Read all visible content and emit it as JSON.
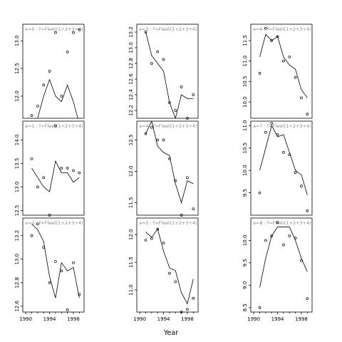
{
  "chart_data": {
    "type": "scatter",
    "xlabel": "Year",
    "ylabel": "",
    "title": "",
    "x_ticks": [
      1990,
      1994,
      1998
    ],
    "panel_label_text": "a=%d : f=Fleet(1+2+3+4)",
    "panels": [
      {
        "label": "a=0 : f=Fleet(1+2+3+4)",
        "row": 0,
        "col": 0,
        "ylim": [
          11.6,
          13.3
        ],
        "y_ticks": [
          12.0,
          12.5,
          13.0
        ],
        "x": [
          1991,
          1992,
          1993,
          1994,
          1995,
          1996,
          1997,
          1998,
          1999
        ],
        "obs": [
          11.65,
          11.82,
          12.2,
          12.45,
          13.15,
          12.0,
          12.8,
          13.15,
          13.2
        ],
        "fit": [
          11.5,
          11.6,
          12.0,
          12.3,
          12.0,
          11.9,
          12.2,
          11.9,
          11.5
        ]
      },
      {
        "label": "a=3 : f=Fleet(1+2+3+4)",
        "row": 0,
        "col": 1,
        "ylim": [
          12.1,
          13.3
        ],
        "y_ticks": [
          12.2,
          12.4,
          12.6,
          12.8,
          13.0,
          13.2
        ],
        "x": [
          1991,
          1992,
          1993,
          1994,
          1995,
          1996,
          1997,
          1998,
          1999
        ],
        "obs": [
          13.2,
          12.8,
          12.95,
          12.85,
          12.3,
          12.2,
          12.5,
          12.1,
          12.4
        ],
        "fit": [
          13.2,
          12.9,
          12.8,
          12.7,
          12.3,
          12.1,
          12.4,
          12.35,
          12.35
        ],
        "fit_start": [
          1991,
          13.1
        ]
      },
      {
        "label": "a=6 : f=Fleet(1+2+3+4)",
        "row": 0,
        "col": 2,
        "ylim": [
          9.6,
          11.9
        ],
        "y_ticks": [
          10.0,
          10.5,
          11.0,
          11.5
        ],
        "x": [
          1991,
          1992,
          1993,
          1994,
          1995,
          1996,
          1997,
          1998,
          1999
        ],
        "obs": [
          10.7,
          11.8,
          11.5,
          11.6,
          11.0,
          11.1,
          10.6,
          10.1,
          9.7
        ],
        "fit": [
          11.1,
          11.65,
          11.5,
          11.6,
          11.1,
          10.9,
          10.8,
          10.3,
          10.1
        ]
      },
      {
        "label": "a=1 : f=Fleet(1+2+3+4)",
        "row": 1,
        "col": 0,
        "ylim": [
          12.4,
          14.4
        ],
        "y_ticks": [
          12.5,
          13.0,
          13.5,
          14.0
        ],
        "x": [
          1991,
          1992,
          1993,
          1994,
          1995,
          1996,
          1997,
          1998,
          1999
        ],
        "obs": [
          13.6,
          13.0,
          13.2,
          12.4,
          14.3,
          13.4,
          13.4,
          13.35,
          13.3
        ],
        "fit": [
          13.4,
          13.2,
          13.0,
          12.9,
          13.55,
          13.3,
          13.3,
          13.1,
          13.2
        ]
      },
      {
        "label": "a=4 : f=Fleet(1+2+3+4)",
        "row": 1,
        "col": 1,
        "ylim": [
          11.3,
          12.8
        ],
        "y_ticks": [
          11.5,
          12.0,
          12.5
        ],
        "x": [
          1991,
          1992,
          1993,
          1994,
          1995,
          1996,
          1997,
          1998,
          1999
        ],
        "obs": [
          12.6,
          12.7,
          12.5,
          12.5,
          12.2,
          11.85,
          11.3,
          11.9,
          11.4
        ],
        "fit": [
          12.6,
          12.8,
          12.4,
          12.3,
          12.25,
          11.8,
          11.5,
          11.85,
          11.8
        ]
      },
      {
        "label": "a=7 : f=Fleet(1+2+3+4)",
        "row": 1,
        "col": 2,
        "ylim": [
          9.0,
          11.1
        ],
        "y_ticks": [
          9.5,
          10.0,
          10.5,
          11.0
        ],
        "x": [
          1991,
          1992,
          1993,
          1994,
          1995,
          1996,
          1997,
          1998,
          1999
        ],
        "obs": [
          9.5,
          10.85,
          11.05,
          10.8,
          10.4,
          10.35,
          9.95,
          9.65,
          9.1
        ],
        "fit": [
          10.0,
          10.5,
          11.0,
          10.75,
          10.8,
          10.4,
          10.0,
          9.9,
          9.45
        ]
      },
      {
        "label": "a=2 : f=Fleet(1+2+3+4)",
        "row": 2,
        "col": 0,
        "ylim": [
          12.55,
          13.35
        ],
        "y_ticks": [
          12.6,
          12.8,
          13.0,
          13.2
        ],
        "x": [
          1991,
          1992,
          1993,
          1994,
          1995,
          1996,
          1997,
          1998,
          1999
        ],
        "obs": [
          13.2,
          13.3,
          13.1,
          12.8,
          12.98,
          12.9,
          12.57,
          12.97,
          12.7
        ],
        "fit": [
          13.3,
          13.25,
          13.15,
          12.85,
          12.67,
          12.97,
          12.9,
          12.93,
          12.67
        ]
      },
      {
        "label": "a=5 : f=Fleet(1+2+3+4)",
        "row": 2,
        "col": 1,
        "ylim": [
          10.6,
          12.3
        ],
        "y_ticks": [
          11.0,
          11.5,
          12.0
        ],
        "x": [
          1991,
          1992,
          1993,
          1994,
          1995,
          1996,
          1997,
          1998,
          1999
        ],
        "obs": [
          11.9,
          11.93,
          12.1,
          11.85,
          11.3,
          11.15,
          10.6,
          10.65,
          10.85
        ],
        "fit": [
          12.05,
          11.95,
          12.1,
          11.7,
          11.4,
          11.35,
          10.95,
          10.75,
          11.2
        ]
      },
      {
        "label": "a=8 : f=Fleet(1+2+3+4)",
        "row": 2,
        "col": 2,
        "ylim": [
          8.4,
          10.5
        ],
        "y_ticks": [
          8.5,
          9.0,
          9.5,
          10.0
        ],
        "x": [
          1991,
          1992,
          1993,
          1994,
          1995,
          1996,
          1997,
          1998,
          1999
        ],
        "obs": [
          8.5,
          10.0,
          10.1,
          10.4,
          9.9,
          10.1,
          10.05,
          9.55,
          8.7
        ],
        "fit": [
          8.95,
          9.6,
          10.1,
          10.3,
          10.3,
          10.3,
          10.0,
          9.6,
          9.3
        ]
      }
    ]
  }
}
